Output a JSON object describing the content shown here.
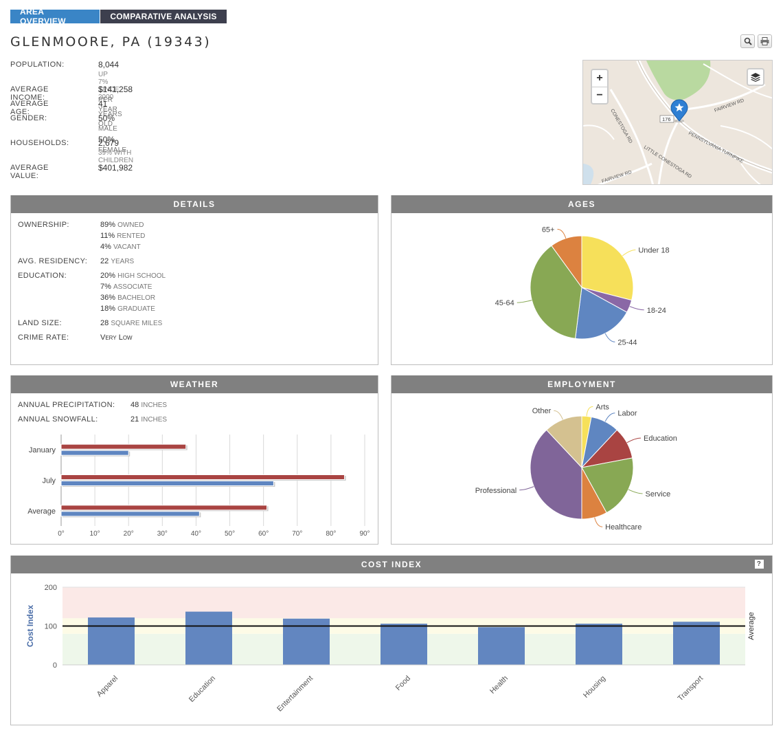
{
  "tabs": [
    {
      "label": "AREA OVERVIEW",
      "active": true
    },
    {
      "label": "COMPARATIVE ANALYSIS",
      "active": false
    }
  ],
  "location": {
    "title": "GLENMOORE, PA (19343)"
  },
  "toolbar": {
    "zoom_icon": "magnifier-icon",
    "print_icon": "printer-icon"
  },
  "stats": {
    "population": {
      "label": "POPULATION:",
      "value": "8,044",
      "sub": "UP 7% SINCE 2000"
    },
    "income": {
      "label": "AVERAGE INCOME:",
      "value": "$141,258",
      "unit": "PER YEAR"
    },
    "age": {
      "label": "AVERAGE AGE:",
      "value": "41",
      "unit": "YEARS OLD"
    },
    "gender": {
      "label": "GENDER:",
      "male_value": "50%",
      "male_unit": "MALE",
      "female_value": "50%",
      "female_unit": "FEMALE"
    },
    "households": {
      "label": "HOUSEHOLDS:",
      "value": "2,679",
      "sub": "39% WITH CHILDREN"
    },
    "value": {
      "label": "AVERAGE VALUE:",
      "value": "$401,982"
    }
  },
  "map": {
    "zoom_in": "+",
    "zoom_out": "−",
    "layers_icon": "layers-icon",
    "marker_icon": "star-marker-icon",
    "roads": {
      "fairview_ne": "FAIRVIEW RD",
      "conestoga": "CONESTOGA RD",
      "little_conestoga": "LITTLE CONESTOGA RD",
      "turnpike": "PENNSYLVANIA TURNPIKE",
      "fairview_sw": "FAIRVIEW RD",
      "route": "176"
    }
  },
  "details": {
    "title": "DETAILS",
    "ownership_label": "OWNERSHIP:",
    "owned_value": "89%",
    "owned_unit": "OWNED",
    "rented_value": "11%",
    "rented_unit": "RENTED",
    "vacant_value": "4%",
    "vacant_unit": "VACANT",
    "residency_label": "AVG. RESIDENCY:",
    "residency_value": "22",
    "residency_unit": "YEARS",
    "education_label": "EDUCATION:",
    "hs_value": "20%",
    "hs_unit": "HIGH SCHOOL",
    "assoc_value": "7%",
    "assoc_unit": "ASSOCIATE",
    "bach_value": "36%",
    "bach_unit": "BACHELOR",
    "grad_value": "18%",
    "grad_unit": "GRADUATE",
    "land_label": "LAND SIZE:",
    "land_value": "28",
    "land_unit": "SQUARE MILES",
    "crime_label": "CRIME RATE:",
    "crime_value": "Very Low"
  },
  "ages": {
    "title": "AGES"
  },
  "weather": {
    "title": "WEATHER",
    "precip_label": "ANNUAL PRECIPITATION:",
    "precip_value": "48",
    "precip_unit": "INCHES",
    "snow_label": "ANNUAL SNOWFALL:",
    "snow_value": "21",
    "snow_unit": "INCHES"
  },
  "employment": {
    "title": "EMPLOYMENT"
  },
  "cost_index": {
    "title": "COST INDEX",
    "help_label": "?"
  },
  "colors": {
    "tab_active": "#3a85c6",
    "tab_inactive": "#3d3f4e",
    "panel_header": "#808080",
    "bar_red": "#a94442",
    "bar_blue": "#5f86c1",
    "cost_bar": "#6286c0",
    "band_high": "#fbe9e7",
    "band_mid": "#fdfbe6",
    "band_low": "#eef7ea"
  },
  "chart_data": [
    {
      "id": "ages",
      "type": "pie",
      "title": "",
      "slices": [
        {
          "label": "Under 18",
          "value": 29,
          "color": "#f6e05a"
        },
        {
          "label": "18-24",
          "value": 4,
          "color": "#8a68a6"
        },
        {
          "label": "25-44",
          "value": 19,
          "color": "#5f86c1"
        },
        {
          "label": "45-64",
          "value": 38,
          "color": "#88a854"
        },
        {
          "label": "65+",
          "value": 10,
          "color": "#dc8240"
        }
      ]
    },
    {
      "id": "weather",
      "type": "bar",
      "orientation": "horizontal",
      "title": "",
      "categories": [
        "January",
        "July",
        "Average"
      ],
      "series": [
        {
          "values": [
            37,
            84,
            61
          ],
          "color": "#a94442"
        },
        {
          "values": [
            20,
            63,
            41
          ],
          "color": "#5f86c1"
        }
      ],
      "xlim": [
        0,
        90
      ],
      "x_ticks": [
        "0°",
        "10°",
        "20°",
        "30°",
        "40°",
        "50°",
        "60°",
        "70°",
        "80°",
        "90°"
      ],
      "grid": true
    },
    {
      "id": "employment",
      "type": "pie",
      "title": "",
      "slices": [
        {
          "label": "Arts",
          "value": 3,
          "color": "#f6e05a"
        },
        {
          "label": "Labor",
          "value": 9,
          "color": "#5f86c1"
        },
        {
          "label": "Education",
          "value": 10,
          "color": "#a94442"
        },
        {
          "label": "Service",
          "value": 20,
          "color": "#88a854"
        },
        {
          "label": "Healthcare",
          "value": 8,
          "color": "#dc8240"
        },
        {
          "label": "Professional",
          "value": 38,
          "color": "#806599"
        },
        {
          "label": "Other",
          "value": 12,
          "color": "#d4c190"
        }
      ]
    },
    {
      "id": "cost_index",
      "type": "bar",
      "title": "",
      "ylabel": "Cost Index",
      "right_label": "Average",
      "categories": [
        "Apparel",
        "Education",
        "Entertainment",
        "Food",
        "Health",
        "Housing",
        "Transport"
      ],
      "values": [
        122,
        137,
        119,
        106,
        97,
        106,
        111
      ],
      "ylim": [
        0,
        200
      ],
      "y_ticks": [
        "0",
        "100",
        "200"
      ],
      "reference_line": 100,
      "bands": [
        {
          "from": 0,
          "to": 80,
          "color": "#eef7ea"
        },
        {
          "from": 80,
          "to": 120,
          "color": "#fdfbe6"
        },
        {
          "from": 120,
          "to": 200,
          "color": "#fbe9e7"
        }
      ]
    }
  ]
}
